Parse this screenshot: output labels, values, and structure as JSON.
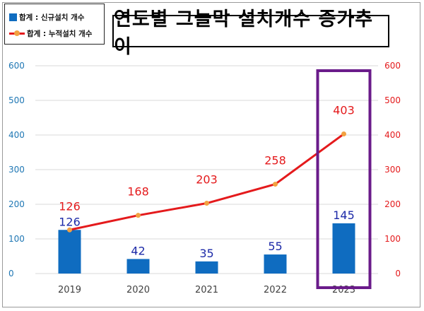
{
  "chart_data": {
    "type": "bar",
    "title": "연도별 그늘막 설치개수 증가추이",
    "categories": [
      "2019",
      "2020",
      "2021",
      "2022",
      "2023"
    ],
    "series": [
      {
        "name": "합계 : 신규설치 개수",
        "kind": "bar",
        "axis": "left",
        "values": [
          126,
          42,
          35,
          55,
          145
        ],
        "color": "#0f6cc0"
      },
      {
        "name": "합계 : 누적설치 개수",
        "kind": "line",
        "axis": "right",
        "values": [
          126,
          168,
          203,
          258,
          403
        ],
        "color": "#e41a1c",
        "marker_color": "#f2a141"
      }
    ],
    "y_left": {
      "ylim": [
        0,
        600
      ],
      "ticks": [
        "0",
        "100",
        "200",
        "300",
        "400",
        "500",
        "600"
      ],
      "color": "#1f77b4"
    },
    "y_right": {
      "ylim": [
        0,
        600
      ],
      "ticks": [
        "0",
        "100",
        "200",
        "300",
        "400",
        "500",
        "600"
      ],
      "color": "#e41a1c"
    },
    "grid": true,
    "legend_position": "top-left",
    "highlight": {
      "category": "2023",
      "color": "#6a1b8a"
    }
  }
}
